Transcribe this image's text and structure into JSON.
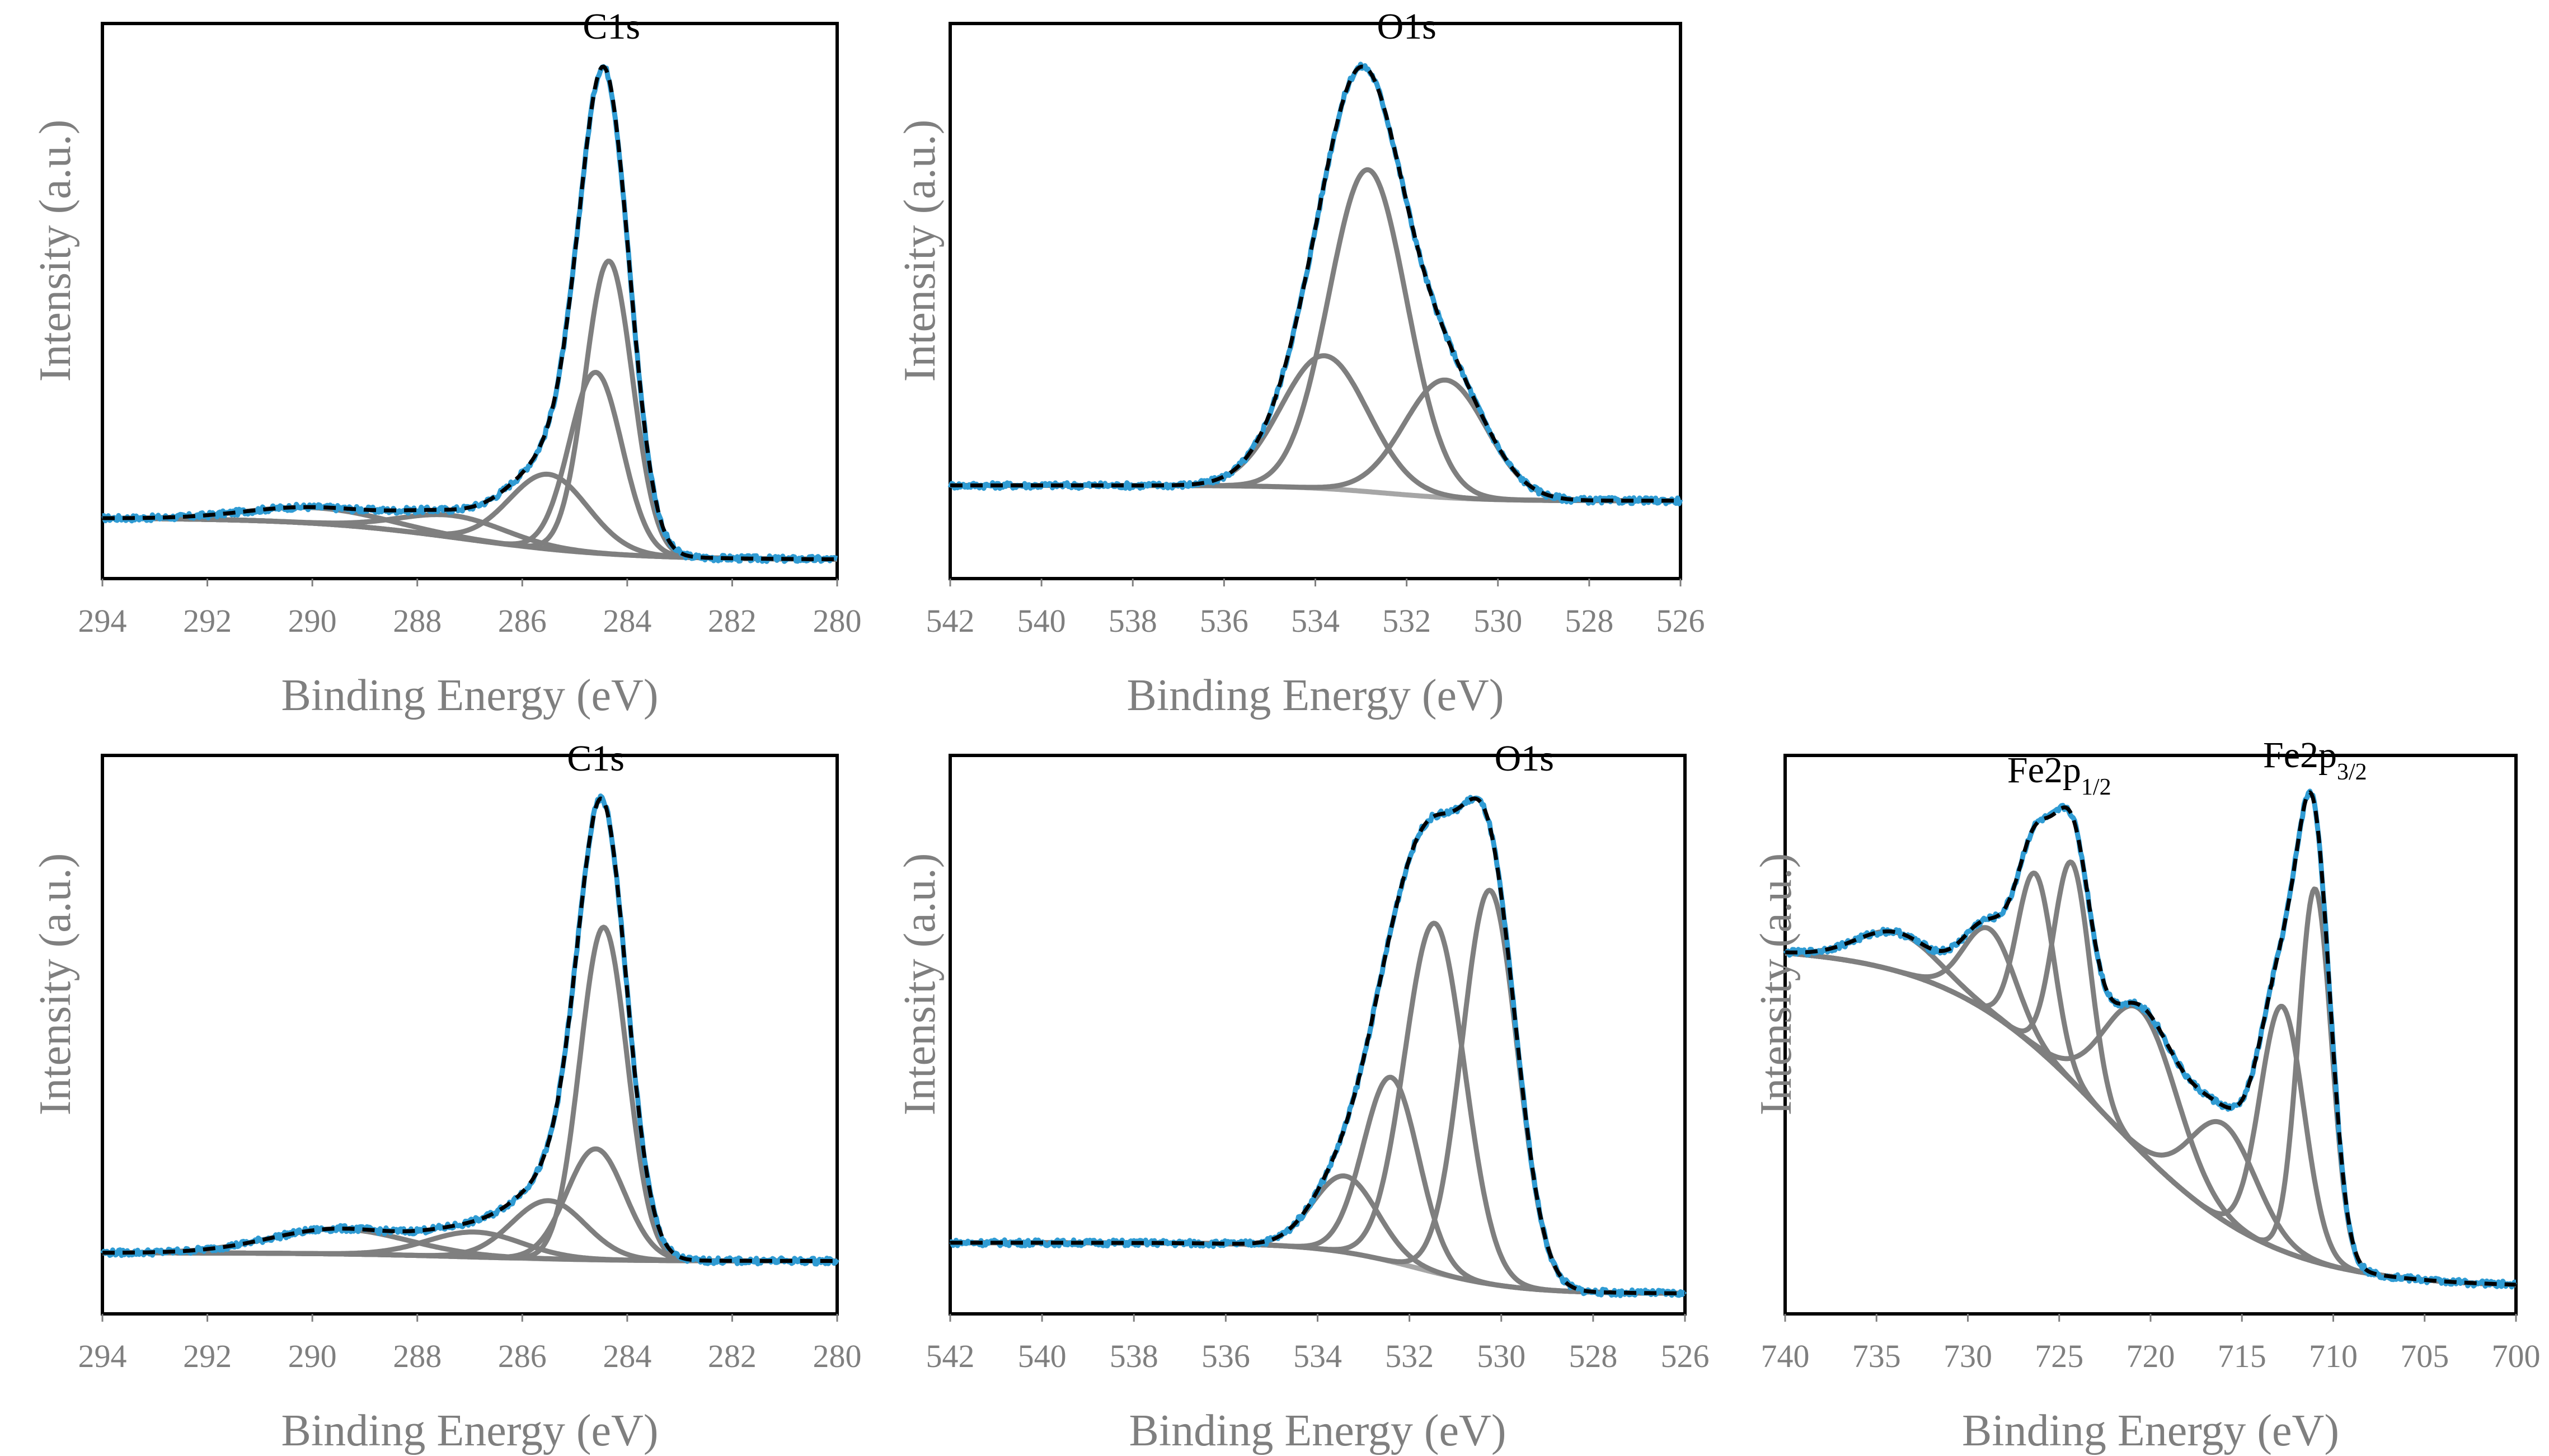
{
  "colors": {
    "data": "#2f9bd3",
    "fit": "#000000",
    "component": "#7f7f7f",
    "background": "#a6a6a6",
    "axis_text": "#7f7f7f"
  },
  "chart_data": [
    {
      "id": "c1s-top",
      "type": "line",
      "title": "",
      "annotation": "C1s",
      "xlabel": "Binding Energy (eV)",
      "ylabel": "Intensity (a.u.)",
      "xlim": [
        294,
        280
      ],
      "ylim": [
        0,
        100
      ],
      "xticks": [
        294,
        292,
        290,
        288,
        286,
        284,
        282,
        280
      ],
      "tick_labels": [
        "294",
        "292",
        "290",
        "288",
        "286",
        "284",
        "282",
        "280"
      ],
      "background": {
        "high": 7.5,
        "low": 0.8
      },
      "components": [
        {
          "center": 284.35,
          "height": 47,
          "width": 0.45
        },
        {
          "center": 284.6,
          "height": 29,
          "width": 0.5
        },
        {
          "center": 285.5,
          "height": 12,
          "width": 0.75
        },
        {
          "center": 287.3,
          "height": 3.5,
          "width": 1.0
        },
        {
          "center": 289.9,
          "height": 2.5,
          "width": 1.3
        }
      ],
      "annotation_x": 284.3
    },
    {
      "id": "o1s-top",
      "type": "line",
      "title": "",
      "annotation": "O1s",
      "xlabel": "Binding Energy (eV)",
      "ylabel": "Intensity (a.u.)",
      "xlim": [
        542,
        526
      ],
      "ylim": [
        0,
        100
      ],
      "xticks": [
        542,
        540,
        538,
        536,
        534,
        532,
        530,
        528,
        526
      ],
      "tick_labels": [
        "542",
        "540",
        "538",
        "536",
        "534",
        "532",
        "530",
        "528",
        "526"
      ],
      "background": {
        "high": 15.5,
        "low": 12.5
      },
      "components": [
        {
          "center": 532.85,
          "height": 63,
          "width": 0.85
        },
        {
          "center": 533.8,
          "height": 26,
          "width": 0.95
        },
        {
          "center": 531.15,
          "height": 23,
          "width": 0.9
        }
      ],
      "annotation_x": 532.0
    },
    {
      "id": "c1s-bottom",
      "type": "line",
      "title": "",
      "annotation": "C1s",
      "xlabel": "Binding Energy (eV)",
      "ylabel": "Intensity (a.u.)",
      "xlim": [
        294,
        280
      ],
      "ylim": [
        0,
        100
      ],
      "xticks": [
        294,
        292,
        290,
        288,
        286,
        284,
        282,
        280
      ],
      "tick_labels": [
        "294",
        "292",
        "290",
        "288",
        "286",
        "284",
        "282",
        "280"
      ],
      "background": {
        "high": 8.5,
        "low": 7.0
      },
      "components": [
        {
          "center": 284.45,
          "height": 60,
          "width": 0.45
        },
        {
          "center": 284.6,
          "height": 20,
          "width": 0.55
        },
        {
          "center": 285.5,
          "height": 10.5,
          "width": 0.7
        },
        {
          "center": 286.9,
          "height": 4.5,
          "width": 0.9
        },
        {
          "center": 289.5,
          "height": 4.5,
          "width": 1.3
        }
      ],
      "annotation_x": 284.6
    },
    {
      "id": "o1s-bottom",
      "type": "line",
      "title": "",
      "annotation": "O1s",
      "xlabel": "Binding Energy (eV)",
      "ylabel": "Intensity (a.u.)",
      "xlim": [
        542,
        526
      ],
      "ylim": [
        0,
        100
      ],
      "xticks": [
        542,
        540,
        538,
        536,
        534,
        532,
        530,
        528,
        526
      ],
      "tick_labels": [
        "542",
        "540",
        "538",
        "536",
        "534",
        "532",
        "530",
        "528",
        "526"
      ],
      "background": {
        "high": 9.0,
        "low": 1.0
      },
      "components": [
        {
          "center": 530.25,
          "height": 62,
          "width": 0.6
        },
        {
          "center": 531.45,
          "height": 55,
          "width": 0.65
        },
        {
          "center": 532.4,
          "height": 29,
          "width": 0.6
        },
        {
          "center": 533.4,
          "height": 12,
          "width": 0.7
        }
      ],
      "annotation_x": 529.5
    },
    {
      "id": "fe2p",
      "type": "line",
      "title": "",
      "annotation": "Fe2p",
      "annotations": [
        {
          "main": "Fe2p",
          "sub": "1/2",
          "x": 725.0
        },
        {
          "main": "Fe2p",
          "sub": "3/2",
          "x": 711.0
        }
      ],
      "xlabel": "Binding Energy (eV)",
      "ylabel": "Intensity (a.u.)",
      "xlim": [
        740,
        700
      ],
      "ylim": [
        0,
        100
      ],
      "xticks": [
        740,
        735,
        730,
        725,
        720,
        715,
        710,
        705,
        700
      ],
      "tick_labels": [
        "740",
        "735",
        "730",
        "725",
        "720",
        "715",
        "710",
        "705",
        "700"
      ],
      "background": {
        "high": 55.0,
        "low": 2.0
      },
      "components": [
        {
          "center": 711.0,
          "height": 58,
          "width": 0.9
        },
        {
          "center": 712.8,
          "height": 38,
          "width": 1.2
        },
        {
          "center": 716.0,
          "height": 15,
          "width": 1.8
        },
        {
          "center": 720.5,
          "height": 22,
          "width": 2.0
        },
        {
          "center": 724.3,
          "height": 34,
          "width": 1.0
        },
        {
          "center": 726.3,
          "height": 27,
          "width": 1.0
        },
        {
          "center": 728.8,
          "height": 13,
          "width": 1.4
        },
        {
          "center": 733.8,
          "height": 6,
          "width": 2.2
        }
      ]
    }
  ]
}
